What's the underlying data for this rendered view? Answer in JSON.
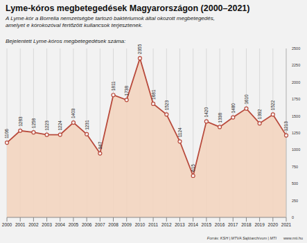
{
  "chart_data": {
    "type": "area",
    "title": "Lyme-kóros megbetegedések Magyarországon (2000–2021)",
    "subtitle": "A Lyme-kór a Borrelia nemzetségbe tartozó baktériumok által okozott megbetegedés, amelyet e kórokozóval fertőzött kullancsok terjesztenek.",
    "y_label": "Bejelentett Lyme-kóros megbetegedések száma:",
    "source": "Forrás: KSH | MTVA Sajtóarchívum | MTI",
    "website": "www.mti.hu",
    "categories": [
      "2000",
      "2001",
      "2002",
      "2003",
      "2004",
      "2005",
      "2006",
      "2007",
      "2008",
      "2009",
      "2010",
      "2011",
      "2012",
      "2013",
      "2014",
      "2015",
      "2016",
      "2017",
      "2018",
      "2019",
      "2020",
      "2021"
    ],
    "values": [
      1106,
      1283,
      1258,
      1223,
      1224,
      1403,
      1231,
      947,
      1811,
      1738,
      2355,
      1681,
      1523,
      1124,
      615,
      1420,
      1338,
      1480,
      1610,
      1392,
      1522,
      1213
    ],
    "color": "#b84a3c",
    "ylim": [
      0,
      2500
    ],
    "yticks": [
      0,
      250,
      500,
      750,
      1000,
      1250,
      1500,
      1750,
      2000,
      2250,
      2500
    ],
    "grid": true,
    "data_labels": true,
    "marker": "circle",
    "line_style": "solid"
  }
}
